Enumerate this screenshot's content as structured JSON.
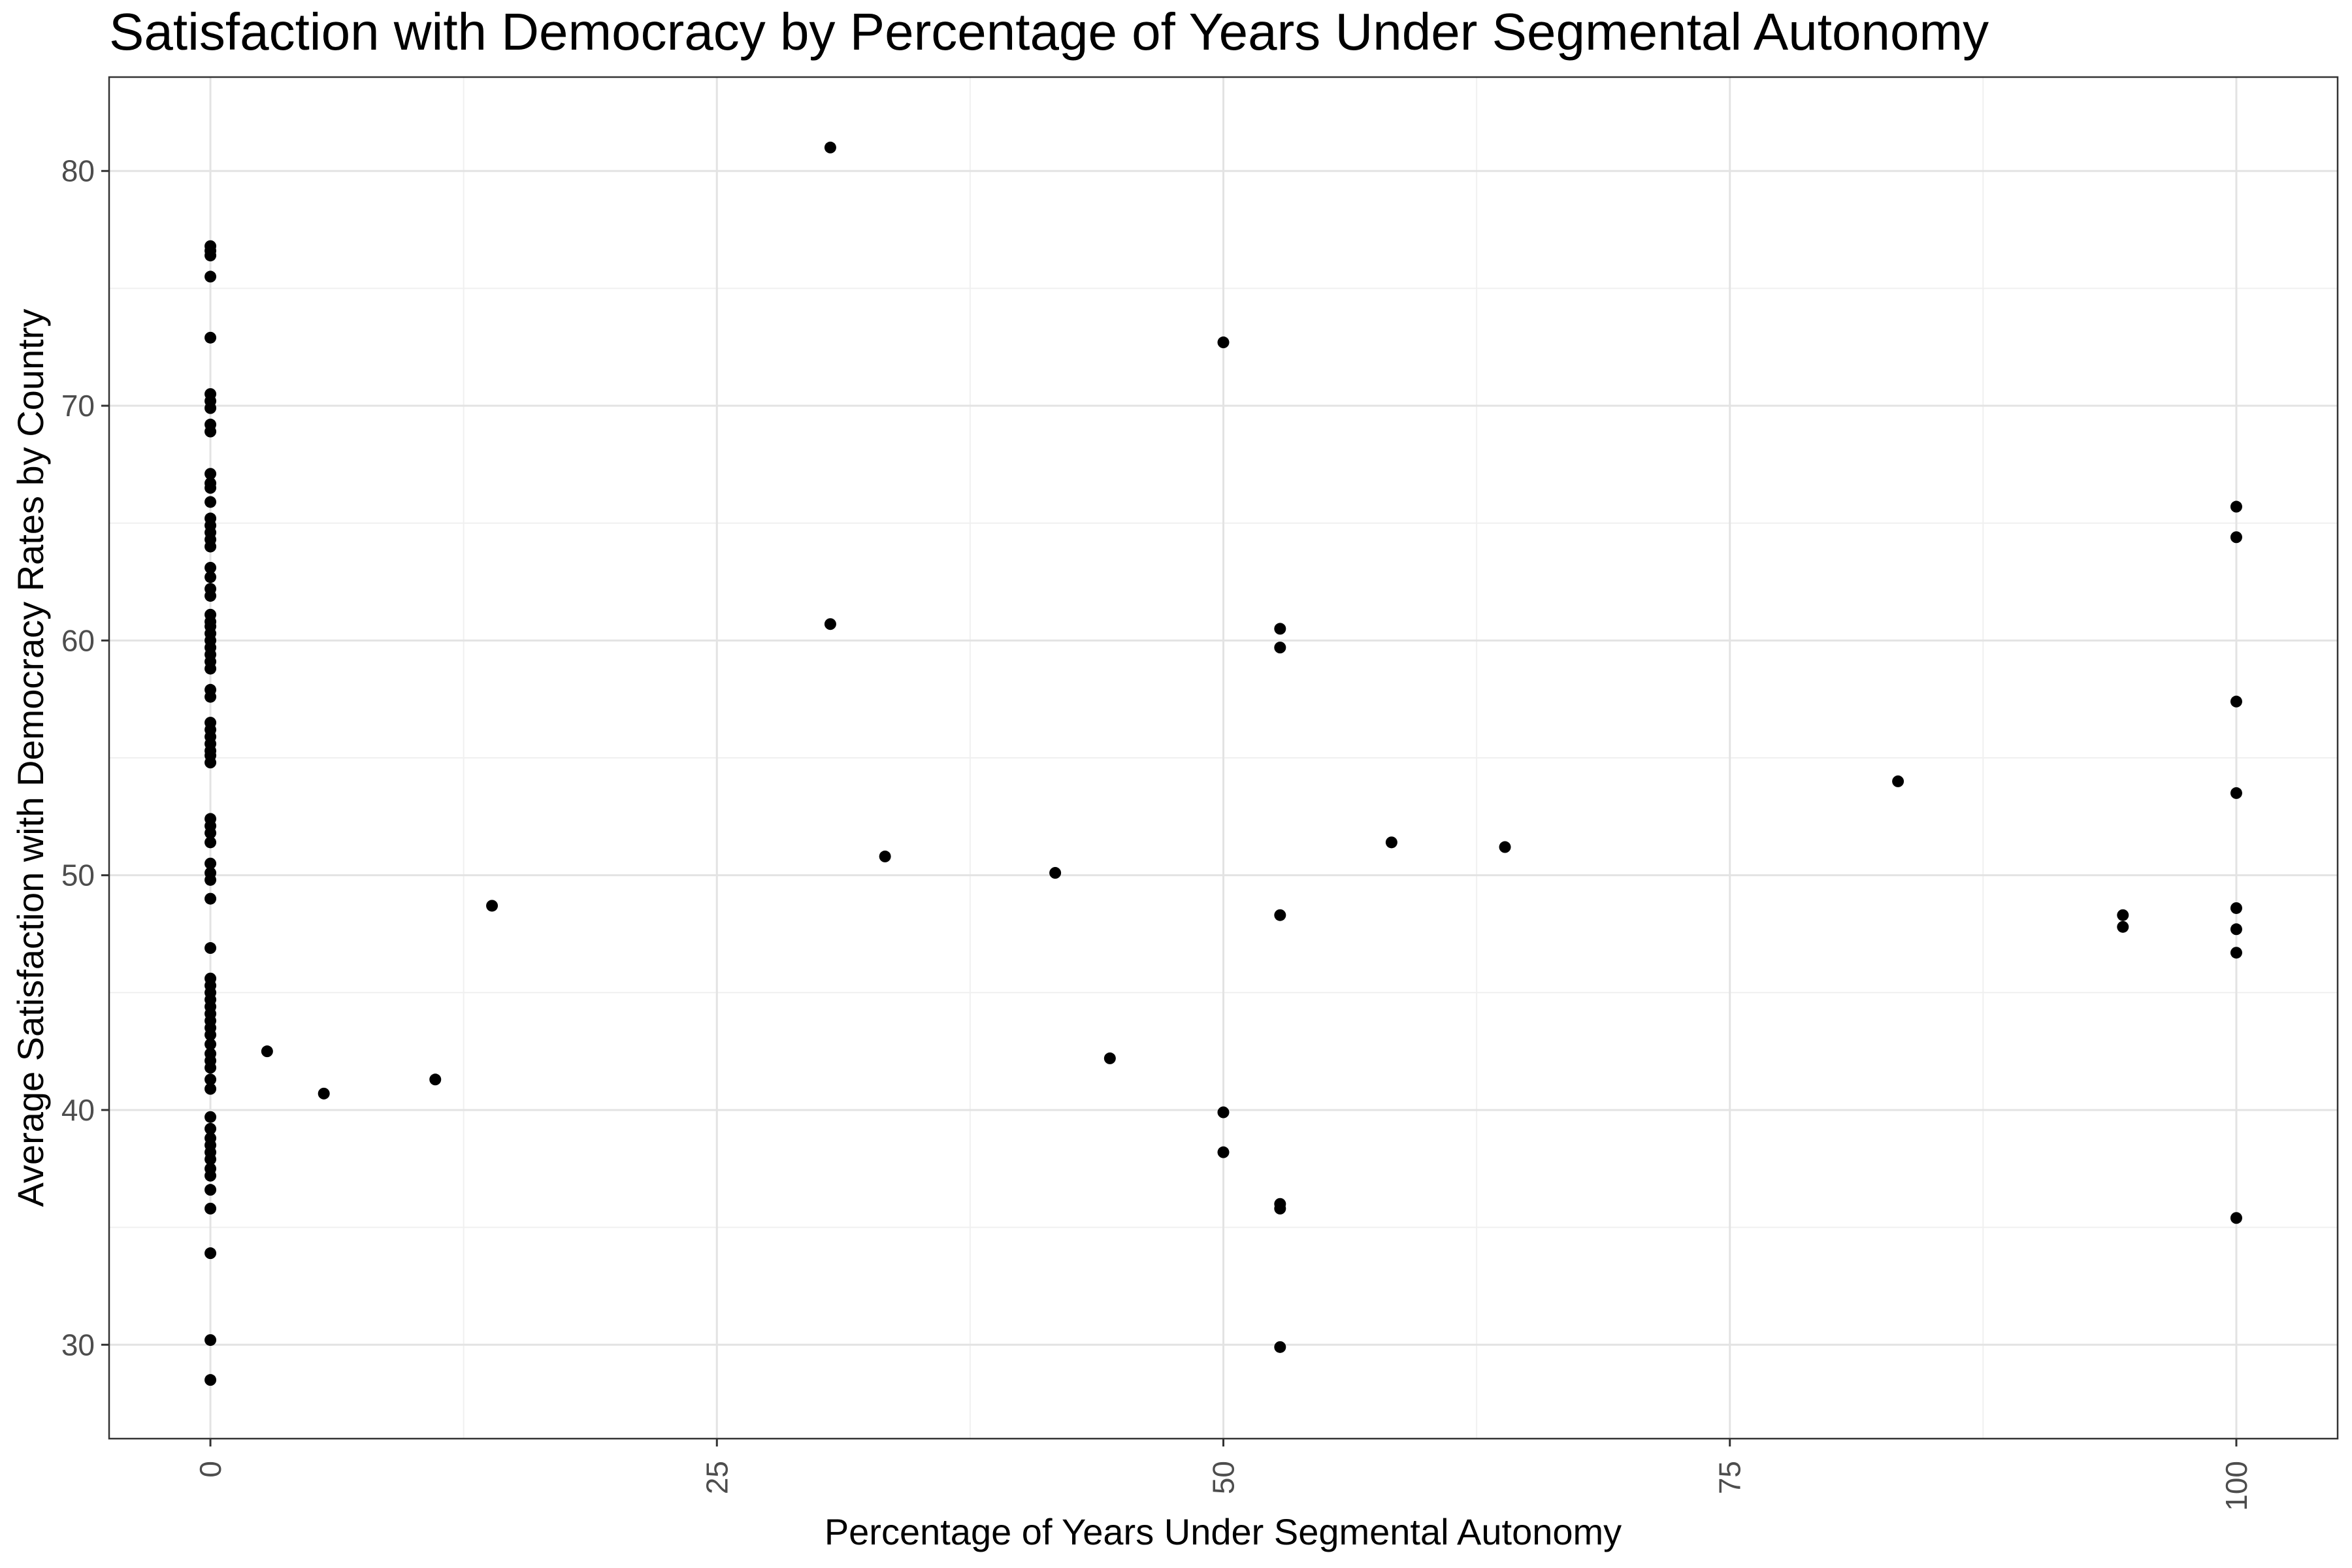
{
  "chart_data": {
    "type": "scatter",
    "title": "Satisfaction with Democracy by Percentage of Years Under Segmental Autonomy",
    "xlabel": "Percentage of Years Under Segmental Autonomy",
    "ylabel": "Average Satisfaction with Democracy Rates by Country",
    "xlim": [
      -5,
      105
    ],
    "ylim": [
      26,
      84
    ],
    "xticks": [
      0,
      25,
      50,
      75,
      100
    ],
    "yticks": [
      30,
      40,
      50,
      60,
      70,
      80
    ],
    "xtick_labels": [
      "0",
      "25",
      "50",
      "75",
      "100"
    ],
    "ytick_labels": [
      "30",
      "40",
      "50",
      "60",
      "70",
      "80"
    ],
    "grid": true,
    "point_color": "#000000",
    "points": [
      [
        0,
        76.8
      ],
      [
        0,
        76.6
      ],
      [
        0,
        76.4
      ],
      [
        0,
        75.5
      ],
      [
        0,
        72.9
      ],
      [
        0,
        70.5
      ],
      [
        0,
        70.2
      ],
      [
        0,
        69.9
      ],
      [
        0,
        69.2
      ],
      [
        0,
        68.9
      ],
      [
        0,
        67.1
      ],
      [
        0,
        66.7
      ],
      [
        0,
        66.5
      ],
      [
        0,
        65.9
      ],
      [
        0,
        65.2
      ],
      [
        0,
        64.9
      ],
      [
        0,
        64.6
      ],
      [
        0,
        64.3
      ],
      [
        0,
        64.0
      ],
      [
        0,
        63.1
      ],
      [
        0,
        62.7
      ],
      [
        0,
        62.2
      ],
      [
        0,
        61.9
      ],
      [
        0,
        61.1
      ],
      [
        0,
        60.8
      ],
      [
        0,
        60.6
      ],
      [
        0,
        60.3
      ],
      [
        0,
        60.0
      ],
      [
        0,
        59.7
      ],
      [
        0,
        59.4
      ],
      [
        0,
        59.1
      ],
      [
        0,
        58.8
      ],
      [
        0,
        57.9
      ],
      [
        0,
        57.6
      ],
      [
        0,
        56.5
      ],
      [
        0,
        56.2
      ],
      [
        0,
        55.9
      ],
      [
        0,
        55.6
      ],
      [
        0,
        55.3
      ],
      [
        0,
        55.1
      ],
      [
        0,
        54.8
      ],
      [
        0,
        52.4
      ],
      [
        0,
        52.1
      ],
      [
        0,
        51.8
      ],
      [
        0,
        51.4
      ],
      [
        0,
        50.5
      ],
      [
        0,
        50.1
      ],
      [
        0,
        49.8
      ],
      [
        0,
        49.0
      ],
      [
        0,
        46.9
      ],
      [
        0,
        45.6
      ],
      [
        0,
        45.3
      ],
      [
        0,
        45.0
      ],
      [
        0,
        44.7
      ],
      [
        0,
        44.4
      ],
      [
        0,
        44.1
      ],
      [
        0,
        43.8
      ],
      [
        0,
        43.5
      ],
      [
        0,
        43.2
      ],
      [
        0,
        42.8
      ],
      [
        0,
        42.4
      ],
      [
        0,
        42.1
      ],
      [
        0,
        41.8
      ],
      [
        0,
        41.3
      ],
      [
        0,
        40.9
      ],
      [
        0,
        39.7
      ],
      [
        0,
        39.2
      ],
      [
        0,
        38.8
      ],
      [
        0,
        38.5
      ],
      [
        0,
        38.2
      ],
      [
        0,
        37.9
      ],
      [
        0,
        37.5
      ],
      [
        0,
        37.2
      ],
      [
        0,
        36.6
      ],
      [
        0,
        35.8
      ],
      [
        0,
        33.9
      ],
      [
        0,
        30.2
      ],
      [
        0,
        28.5
      ],
      [
        2.8,
        42.5
      ],
      [
        5.6,
        40.7
      ],
      [
        11.1,
        41.3
      ],
      [
        13.9,
        48.7
      ],
      [
        30.6,
        81.0
      ],
      [
        30.6,
        60.7
      ],
      [
        33.3,
        50.8
      ],
      [
        41.7,
        50.1
      ],
      [
        44.4,
        42.2
      ],
      [
        50.0,
        72.7
      ],
      [
        50.0,
        39.9
      ],
      [
        50.0,
        38.2
      ],
      [
        52.8,
        60.5
      ],
      [
        52.8,
        59.7
      ],
      [
        52.8,
        48.3
      ],
      [
        52.8,
        36.0
      ],
      [
        52.8,
        35.8
      ],
      [
        52.8,
        29.9
      ],
      [
        58.3,
        51.4
      ],
      [
        63.9,
        51.2
      ],
      [
        83.3,
        54.0
      ],
      [
        94.4,
        48.3
      ],
      [
        94.4,
        47.8
      ],
      [
        100,
        65.7
      ],
      [
        100,
        64.4
      ],
      [
        100,
        57.4
      ],
      [
        100,
        53.5
      ],
      [
        100,
        48.6
      ],
      [
        100,
        47.7
      ],
      [
        100,
        46.7
      ],
      [
        100,
        35.4
      ]
    ]
  }
}
